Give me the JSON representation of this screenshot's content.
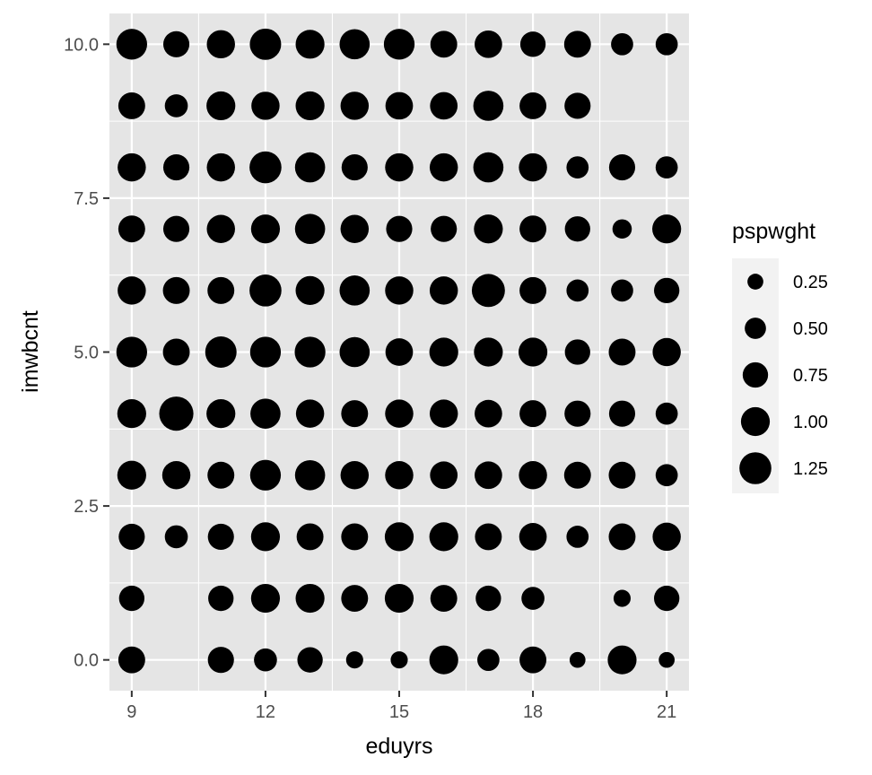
{
  "chart_data": {
    "type": "scatter",
    "xlabel": "eduyrs",
    "ylabel": "imwbcnt",
    "xlim": [
      8.5,
      21.5
    ],
    "ylim": [
      -0.5,
      10.5
    ],
    "x_ticks": [
      9,
      12,
      15,
      18,
      21
    ],
    "x_tick_labels": [
      "9",
      "12",
      "15",
      "18",
      "21"
    ],
    "y_ticks": [
      0,
      2.5,
      5,
      7.5,
      10
    ],
    "y_tick_labels": [
      "0.0",
      "2.5",
      "5.0",
      "7.5",
      "10.0"
    ],
    "grid": true,
    "panel_color": "#e5e5e5",
    "grid_color": "#ffffff",
    "point_color": "#000000",
    "size_legend": {
      "title": "pspwght",
      "position": "right",
      "values": [
        0.25,
        0.5,
        0.75,
        1.0,
        1.25
      ],
      "labels": [
        "0.25",
        "0.50",
        "0.75",
        "1.00",
        "1.25"
      ]
    },
    "points": [
      {
        "x": 9,
        "y": 10,
        "size": 1.15
      },
      {
        "x": 10,
        "y": 10,
        "size": 0.8
      },
      {
        "x": 11,
        "y": 10,
        "size": 0.95
      },
      {
        "x": 12,
        "y": 10,
        "size": 1.2
      },
      {
        "x": 13,
        "y": 10,
        "size": 1.0
      },
      {
        "x": 14,
        "y": 10,
        "size": 1.1
      },
      {
        "x": 15,
        "y": 10,
        "size": 1.15
      },
      {
        "x": 16,
        "y": 10,
        "size": 0.85
      },
      {
        "x": 17,
        "y": 10,
        "size": 0.9
      },
      {
        "x": 18,
        "y": 10,
        "size": 0.75
      },
      {
        "x": 19,
        "y": 10,
        "size": 0.85
      },
      {
        "x": 20,
        "y": 10,
        "size": 0.55
      },
      {
        "x": 21,
        "y": 10,
        "size": 0.55
      },
      {
        "x": 9,
        "y": 9,
        "size": 0.85
      },
      {
        "x": 10,
        "y": 9,
        "size": 0.6
      },
      {
        "x": 11,
        "y": 9,
        "size": 1.0
      },
      {
        "x": 12,
        "y": 9,
        "size": 0.95
      },
      {
        "x": 13,
        "y": 9,
        "size": 1.0
      },
      {
        "x": 14,
        "y": 9,
        "size": 0.95
      },
      {
        "x": 15,
        "y": 9,
        "size": 0.9
      },
      {
        "x": 16,
        "y": 9,
        "size": 0.9
      },
      {
        "x": 17,
        "y": 9,
        "size": 1.1
      },
      {
        "x": 18,
        "y": 9,
        "size": 0.85
      },
      {
        "x": 19,
        "y": 9,
        "size": 0.8
      },
      {
        "x": 9,
        "y": 8,
        "size": 0.95
      },
      {
        "x": 10,
        "y": 8,
        "size": 0.8
      },
      {
        "x": 11,
        "y": 8,
        "size": 0.95
      },
      {
        "x": 12,
        "y": 8,
        "size": 1.25
      },
      {
        "x": 13,
        "y": 8,
        "size": 1.1
      },
      {
        "x": 14,
        "y": 8,
        "size": 0.8
      },
      {
        "x": 15,
        "y": 8,
        "size": 0.95
      },
      {
        "x": 16,
        "y": 8,
        "size": 0.95
      },
      {
        "x": 17,
        "y": 8,
        "size": 1.1
      },
      {
        "x": 18,
        "y": 8,
        "size": 0.95
      },
      {
        "x": 19,
        "y": 8,
        "size": 0.55
      },
      {
        "x": 20,
        "y": 8,
        "size": 0.8
      },
      {
        "x": 21,
        "y": 8,
        "size": 0.55
      },
      {
        "x": 9,
        "y": 7,
        "size": 0.85
      },
      {
        "x": 10,
        "y": 7,
        "size": 0.8
      },
      {
        "x": 11,
        "y": 7,
        "size": 0.95
      },
      {
        "x": 12,
        "y": 7,
        "size": 1.0
      },
      {
        "x": 13,
        "y": 7,
        "size": 1.1
      },
      {
        "x": 14,
        "y": 7,
        "size": 0.95
      },
      {
        "x": 15,
        "y": 7,
        "size": 0.8
      },
      {
        "x": 16,
        "y": 7,
        "size": 0.8
      },
      {
        "x": 17,
        "y": 7,
        "size": 1.0
      },
      {
        "x": 18,
        "y": 7,
        "size": 0.85
      },
      {
        "x": 19,
        "y": 7,
        "size": 0.75
      },
      {
        "x": 20,
        "y": 7,
        "size": 0.4
      },
      {
        "x": 21,
        "y": 7,
        "size": 1.0
      },
      {
        "x": 9,
        "y": 6,
        "size": 0.95
      },
      {
        "x": 10,
        "y": 6,
        "size": 0.85
      },
      {
        "x": 11,
        "y": 6,
        "size": 0.85
      },
      {
        "x": 12,
        "y": 6,
        "size": 1.25
      },
      {
        "x": 13,
        "y": 6,
        "size": 1.0
      },
      {
        "x": 14,
        "y": 6,
        "size": 1.1
      },
      {
        "x": 15,
        "y": 6,
        "size": 0.95
      },
      {
        "x": 16,
        "y": 6,
        "size": 0.95
      },
      {
        "x": 17,
        "y": 6,
        "size": 1.35
      },
      {
        "x": 18,
        "y": 6,
        "size": 0.85
      },
      {
        "x": 19,
        "y": 6,
        "size": 0.55
      },
      {
        "x": 20,
        "y": 6,
        "size": 0.55
      },
      {
        "x": 21,
        "y": 6,
        "size": 0.75
      },
      {
        "x": 9,
        "y": 5,
        "size": 1.15
      },
      {
        "x": 10,
        "y": 5,
        "size": 0.85
      },
      {
        "x": 11,
        "y": 5,
        "size": 1.2
      },
      {
        "x": 12,
        "y": 5,
        "size": 1.15
      },
      {
        "x": 13,
        "y": 5,
        "size": 1.15
      },
      {
        "x": 14,
        "y": 5,
        "size": 1.1
      },
      {
        "x": 15,
        "y": 5,
        "size": 0.9
      },
      {
        "x": 16,
        "y": 5,
        "size": 1.0
      },
      {
        "x": 17,
        "y": 5,
        "size": 1.0
      },
      {
        "x": 18,
        "y": 5,
        "size": 1.0
      },
      {
        "x": 19,
        "y": 5,
        "size": 0.75
      },
      {
        "x": 20,
        "y": 5,
        "size": 0.85
      },
      {
        "x": 21,
        "y": 5,
        "size": 0.95
      },
      {
        "x": 9,
        "y": 4,
        "size": 1.0
      },
      {
        "x": 10,
        "y": 4,
        "size": 1.45
      },
      {
        "x": 11,
        "y": 4,
        "size": 1.0
      },
      {
        "x": 12,
        "y": 4,
        "size": 1.1
      },
      {
        "x": 13,
        "y": 4,
        "size": 0.95
      },
      {
        "x": 14,
        "y": 4,
        "size": 0.85
      },
      {
        "x": 15,
        "y": 4,
        "size": 0.95
      },
      {
        "x": 16,
        "y": 4,
        "size": 0.95
      },
      {
        "x": 17,
        "y": 4,
        "size": 0.9
      },
      {
        "x": 18,
        "y": 4,
        "size": 0.85
      },
      {
        "x": 19,
        "y": 4,
        "size": 0.8
      },
      {
        "x": 20,
        "y": 4,
        "size": 0.8
      },
      {
        "x": 21,
        "y": 4,
        "size": 0.55
      },
      {
        "x": 9,
        "y": 3,
        "size": 1.0
      },
      {
        "x": 10,
        "y": 3,
        "size": 0.95
      },
      {
        "x": 11,
        "y": 3,
        "size": 0.85
      },
      {
        "x": 12,
        "y": 3,
        "size": 1.15
      },
      {
        "x": 13,
        "y": 3,
        "size": 1.1
      },
      {
        "x": 14,
        "y": 3,
        "size": 0.95
      },
      {
        "x": 15,
        "y": 3,
        "size": 0.95
      },
      {
        "x": 16,
        "y": 3,
        "size": 0.9
      },
      {
        "x": 17,
        "y": 3,
        "size": 0.9
      },
      {
        "x": 18,
        "y": 3,
        "size": 0.95
      },
      {
        "x": 19,
        "y": 3,
        "size": 0.85
      },
      {
        "x": 20,
        "y": 3,
        "size": 0.85
      },
      {
        "x": 21,
        "y": 3,
        "size": 0.55
      },
      {
        "x": 9,
        "y": 2,
        "size": 0.8
      },
      {
        "x": 10,
        "y": 2,
        "size": 0.6
      },
      {
        "x": 11,
        "y": 2,
        "size": 0.8
      },
      {
        "x": 12,
        "y": 2,
        "size": 1.0
      },
      {
        "x": 13,
        "y": 2,
        "size": 0.85
      },
      {
        "x": 14,
        "y": 2,
        "size": 0.85
      },
      {
        "x": 15,
        "y": 2,
        "size": 1.0
      },
      {
        "x": 16,
        "y": 2,
        "size": 1.0
      },
      {
        "x": 17,
        "y": 2,
        "size": 0.85
      },
      {
        "x": 18,
        "y": 2,
        "size": 0.9
      },
      {
        "x": 19,
        "y": 2,
        "size": 0.55
      },
      {
        "x": 20,
        "y": 2,
        "size": 0.85
      },
      {
        "x": 21,
        "y": 2,
        "size": 0.95
      },
      {
        "x": 9,
        "y": 1,
        "size": 0.75
      },
      {
        "x": 11,
        "y": 1,
        "size": 0.75
      },
      {
        "x": 12,
        "y": 1,
        "size": 1.0
      },
      {
        "x": 13,
        "y": 1,
        "size": 1.0
      },
      {
        "x": 14,
        "y": 1,
        "size": 0.85
      },
      {
        "x": 15,
        "y": 1,
        "size": 1.0
      },
      {
        "x": 16,
        "y": 1,
        "size": 0.85
      },
      {
        "x": 17,
        "y": 1,
        "size": 0.75
      },
      {
        "x": 18,
        "y": 1,
        "size": 0.6
      },
      {
        "x": 20,
        "y": 1,
        "size": 0.3
      },
      {
        "x": 21,
        "y": 1,
        "size": 0.75
      },
      {
        "x": 9,
        "y": 0,
        "size": 0.85
      },
      {
        "x": 11,
        "y": 0,
        "size": 0.8
      },
      {
        "x": 12,
        "y": 0,
        "size": 0.6
      },
      {
        "x": 13,
        "y": 0,
        "size": 0.75
      },
      {
        "x": 14,
        "y": 0,
        "size": 0.3
      },
      {
        "x": 15,
        "y": 0,
        "size": 0.3
      },
      {
        "x": 16,
        "y": 0,
        "size": 1.0
      },
      {
        "x": 17,
        "y": 0,
        "size": 0.55
      },
      {
        "x": 18,
        "y": 0,
        "size": 0.85
      },
      {
        "x": 19,
        "y": 0,
        "size": 0.25
      },
      {
        "x": 20,
        "y": 0,
        "size": 1.0
      },
      {
        "x": 21,
        "y": 0,
        "size": 0.25
      }
    ]
  }
}
